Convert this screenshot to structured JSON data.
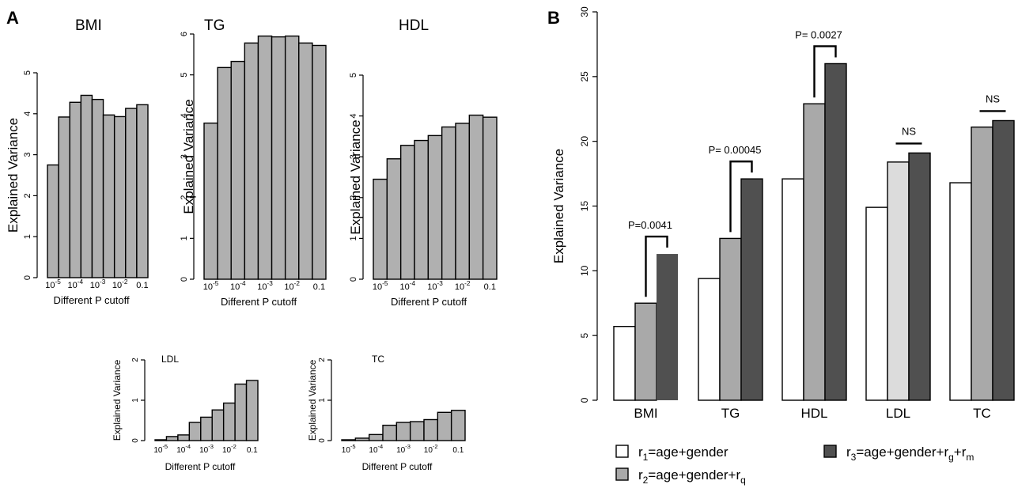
{
  "panels": {
    "a": "A",
    "b": "B"
  },
  "colors": {
    "bar_gray": "#b0b0b0",
    "r1": "#ffffff",
    "r2": "#a9a9a9",
    "r2_ldl": "#dcdcdc",
    "r3": "#505050",
    "stroke": "#000000"
  },
  "chart_data": [
    {
      "type": "bar",
      "title": "BMI",
      "ylabel": "Explained Variance",
      "xlabel": "Different P cutoff",
      "ylim": [
        0,
        5
      ],
      "yticks": [
        "0",
        "1",
        "2",
        "3",
        "4",
        "5"
      ],
      "xtick_labels": [
        {
          "base": "10",
          "exp": "-5"
        },
        {
          "base": "10",
          "exp": "-4"
        },
        {
          "base": "10",
          "exp": "-3"
        },
        {
          "base": "10",
          "exp": "-2"
        },
        {
          "base": "0.1",
          "exp": ""
        }
      ],
      "values": [
        2.75,
        3.92,
        4.28,
        4.45,
        4.35,
        3.97,
        3.93,
        4.13,
        4.22
      ]
    },
    {
      "type": "bar",
      "title": "TG",
      "ylabel": "Explained Variance",
      "xlabel": "Different P cutoff",
      "ylim": [
        0,
        6
      ],
      "yticks": [
        "0",
        "1",
        "2",
        "3",
        "4",
        "5",
        "6"
      ],
      "xtick_labels": [
        {
          "base": "10",
          "exp": "-5"
        },
        {
          "base": "10",
          "exp": "-4"
        },
        {
          "base": "10",
          "exp": "-3"
        },
        {
          "base": "10",
          "exp": "-2"
        },
        {
          "base": "0.1",
          "exp": ""
        }
      ],
      "values": [
        3.82,
        5.18,
        5.33,
        5.78,
        5.95,
        5.93,
        5.95,
        5.78,
        5.72
      ]
    },
    {
      "type": "bar",
      "title": "HDL",
      "ylabel": "Explained Variance",
      "xlabel": "Different P cutoff",
      "ylim": [
        0,
        5
      ],
      "yticks": [
        "0",
        "1",
        "2",
        "3",
        "4",
        "5"
      ],
      "xtick_labels": [
        {
          "base": "10",
          "exp": "-5"
        },
        {
          "base": "10",
          "exp": "-4"
        },
        {
          "base": "10",
          "exp": "-3"
        },
        {
          "base": "10",
          "exp": "-2"
        },
        {
          "base": "0.1",
          "exp": ""
        }
      ],
      "values": [
        2.45,
        2.95,
        3.28,
        3.4,
        3.52,
        3.73,
        3.82,
        4.02,
        3.97
      ]
    },
    {
      "type": "bar",
      "title": "LDL",
      "ylabel": "Explained Variance",
      "xlabel": "Different P cutoff",
      "ylim": [
        0,
        2
      ],
      "yticks": [
        "0",
        "1",
        "2"
      ],
      "xtick_labels": [
        {
          "base": "10",
          "exp": "-5"
        },
        {
          "base": "10",
          "exp": "-4"
        },
        {
          "base": "10",
          "exp": "-3"
        },
        {
          "base": "10",
          "exp": "-2"
        },
        {
          "base": "0.1",
          "exp": ""
        }
      ],
      "values": [
        0.02,
        0.1,
        0.14,
        0.45,
        0.58,
        0.76,
        0.93,
        1.4,
        1.49
      ]
    },
    {
      "type": "bar",
      "title": "TC",
      "ylabel": "Explained Variance",
      "xlabel": "Different P cutoff",
      "ylim": [
        0,
        2
      ],
      "yticks": [
        "0",
        "1",
        "2"
      ],
      "xtick_labels": [
        {
          "base": "10",
          "exp": "-5"
        },
        {
          "base": "10",
          "exp": "-4"
        },
        {
          "base": "10",
          "exp": "-3"
        },
        {
          "base": "10",
          "exp": "-2"
        },
        {
          "base": "0.1",
          "exp": ""
        }
      ],
      "values": [
        0.02,
        0.06,
        0.15,
        0.38,
        0.45,
        0.47,
        0.52,
        0.7,
        0.75
      ]
    },
    {
      "type": "bar",
      "ylabel": "Explained Variance",
      "ylim": [
        0,
        30
      ],
      "yticks": [
        "0",
        "5",
        "10",
        "15",
        "20",
        "25",
        "30"
      ],
      "categories": [
        "BMI",
        "TG",
        "HDL",
        "LDL",
        "TC"
      ],
      "series": [
        {
          "key": "r1",
          "values": [
            5.7,
            9.4,
            17.1,
            14.9,
            16.8
          ]
        },
        {
          "key": "r2",
          "values": [
            7.5,
            12.5,
            22.9,
            18.4,
            21.1
          ]
        },
        {
          "key": "r3",
          "values": [
            11.3,
            17.1,
            26.0,
            19.1,
            21.6
          ]
        }
      ],
      "annotations": [
        "P=0.0041",
        "P= 0.00045",
        "P= 0.0027",
        "NS",
        "NS"
      ],
      "legend": [
        {
          "key": "r1",
          "parts": [
            {
              "t": "r",
              "s": ""
            },
            {
              "t": "1",
              "s": "sub"
            },
            {
              "t": "=age+gender",
              "s": ""
            }
          ]
        },
        {
          "key": "r2",
          "parts": [
            {
              "t": "r",
              "s": ""
            },
            {
              "t": "2",
              "s": "sub"
            },
            {
              "t": "=age+gender+r",
              "s": ""
            },
            {
              "t": "q",
              "s": "sub"
            }
          ]
        },
        {
          "key": "r3",
          "parts": [
            {
              "t": "r",
              "s": ""
            },
            {
              "t": "3",
              "s": "sub"
            },
            {
              "t": "=age+gender+r",
              "s": ""
            },
            {
              "t": "g",
              "s": "sub"
            },
            {
              "t": "+r",
              "s": ""
            },
            {
              "t": "m",
              "s": "sub"
            }
          ]
        }
      ]
    }
  ]
}
